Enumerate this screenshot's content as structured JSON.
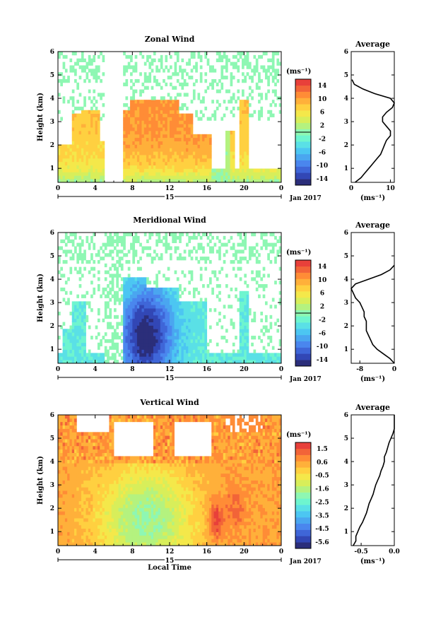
{
  "chart_data": [
    {
      "type": "heatmap",
      "title": "Zonal Wind",
      "ylabel": "Height (km)",
      "xticks": [
        "0",
        "4",
        "8",
        "12",
        "16",
        "20",
        "0"
      ],
      "xlim": [
        0,
        24
      ],
      "yticks": [
        "1",
        "2",
        "3",
        "4",
        "5",
        "6"
      ],
      "ylim": [
        0.4,
        6
      ],
      "date_center": "15",
      "date_label": "Jan 2017",
      "colorbar": {
        "unit": "(ms⁻¹)",
        "ticks": [
          "14",
          "10",
          "6",
          "2",
          "-2",
          "-6",
          "-10",
          "-14"
        ],
        "range": [
          -16,
          16
        ],
        "colors": [
          "#2b2e7a",
          "#3247b5",
          "#3f66d8",
          "#4a86ee",
          "#4aa6f0",
          "#4cc6f2",
          "#5ae0e6",
          "#6ef5cf",
          "#8ef7b3",
          "#b4f27f",
          "#d8ee5a",
          "#f4e84a",
          "#ffd040",
          "#ffb03a",
          "#ff8c36",
          "#f26438",
          "#e8403a"
        ]
      },
      "average_profile": {
        "title": "Average",
        "xlabel": "(ms⁻¹)",
        "xticks": [
          "0",
          "10"
        ],
        "xlim": [
          0,
          11
        ],
        "height": [
          0.4,
          0.6,
          0.8,
          1.0,
          1.2,
          1.4,
          1.6,
          1.8,
          2.0,
          2.2,
          2.4,
          2.6,
          2.8,
          3.0,
          3.2,
          3.4,
          3.6,
          3.8,
          4.0,
          4.2,
          4.4,
          4.6,
          4.8
        ],
        "value": [
          1.0,
          2.5,
          3.5,
          4.5,
          5.5,
          6.5,
          7.5,
          8.0,
          8.5,
          9.0,
          10.0,
          10.0,
          9.0,
          8.0,
          8.0,
          9.0,
          10.5,
          11.0,
          10.0,
          6.0,
          3.0,
          0.8,
          0.2
        ]
      }
    },
    {
      "type": "heatmap",
      "title": "Meridional Wind",
      "ylabel": "Height (km)",
      "xticks": [
        "0",
        "4",
        "8",
        "12",
        "16",
        "20",
        "0"
      ],
      "xlim": [
        0,
        24
      ],
      "yticks": [
        "1",
        "2",
        "3",
        "4",
        "5",
        "6"
      ],
      "ylim": [
        0.4,
        6
      ],
      "date_center": "15",
      "date_label": "Jan 2017",
      "colorbar": {
        "unit": "(ms⁻¹)",
        "ticks": [
          "14",
          "10",
          "6",
          "2",
          "-2",
          "-6",
          "-10",
          "-14"
        ],
        "range": [
          -16,
          16
        ],
        "colors": [
          "#2b2e7a",
          "#3247b5",
          "#3f66d8",
          "#4a86ee",
          "#4aa6f0",
          "#4cc6f2",
          "#5ae0e6",
          "#6ef5cf",
          "#8ef7b3",
          "#b4f27f",
          "#d8ee5a",
          "#f4e84a",
          "#ffd040",
          "#ffb03a",
          "#ff8c36",
          "#f26438",
          "#e8403a"
        ]
      },
      "average_profile": {
        "title": "Average",
        "xlabel": "(ms⁻¹)",
        "xticks": [
          "-8",
          "0"
        ],
        "xlim": [
          -10,
          0
        ],
        "height": [
          0.4,
          0.6,
          0.8,
          1.0,
          1.2,
          1.4,
          1.6,
          1.8,
          2.0,
          2.2,
          2.4,
          2.6,
          2.8,
          3.0,
          3.2,
          3.4,
          3.6,
          3.8,
          4.0,
          4.2,
          4.4,
          4.6
        ],
        "value": [
          0.0,
          -1.0,
          -2.5,
          -4.0,
          -5.0,
          -5.5,
          -6.0,
          -6.5,
          -6.5,
          -6.5,
          -7.0,
          -7.0,
          -7.5,
          -8.0,
          -9.0,
          -9.5,
          -10.0,
          -9.0,
          -6.0,
          -3.0,
          -1.0,
          0.0
        ]
      }
    },
    {
      "type": "heatmap",
      "title": "Vertical Wind",
      "ylabel": "Height (km)",
      "xlabel": "Local Time",
      "xticks": [
        "0",
        "4",
        "8",
        "12",
        "16",
        "20",
        "0"
      ],
      "xlim": [
        0,
        24
      ],
      "yticks": [
        "1",
        "2",
        "3",
        "4",
        "5",
        "6"
      ],
      "ylim": [
        0.4,
        6
      ],
      "date_center": "15",
      "date_label": "Jan 2017",
      "colorbar": {
        "unit": "(ms⁻¹)",
        "ticks": [
          "1.5",
          "0.6",
          "-0.5",
          "-1.6",
          "-2.5",
          "-3.5",
          "-4.5",
          "-5.6"
        ],
        "range": [
          -6,
          2
        ],
        "colors": [
          "#2b2e7a",
          "#3247b5",
          "#3f66d8",
          "#4a86ee",
          "#4aa6f0",
          "#4cc6f2",
          "#5ae0e6",
          "#6ef5cf",
          "#8ef7b3",
          "#b4f27f",
          "#d8ee5a",
          "#f4e84a",
          "#ffd040",
          "#ffb03a",
          "#ff8c36",
          "#f26438",
          "#e8403a"
        ]
      },
      "average_profile": {
        "title": "Average",
        "xlabel": "(ms⁻¹)",
        "xticks": [
          "-0.5",
          "0.0"
        ],
        "xlim": [
          -0.65,
          0.0
        ],
        "height": [
          0.4,
          0.6,
          0.8,
          1.0,
          1.2,
          1.4,
          1.6,
          1.8,
          2.0,
          2.2,
          2.4,
          2.6,
          2.8,
          3.0,
          3.2,
          3.4,
          3.6,
          3.8,
          4.0,
          4.2,
          4.4,
          4.6,
          4.8,
          5.0,
          5.2,
          5.4,
          5.6,
          5.8,
          6.0
        ],
        "value": [
          -0.62,
          -0.58,
          -0.58,
          -0.55,
          -0.52,
          -0.48,
          -0.45,
          -0.42,
          -0.4,
          -0.38,
          -0.35,
          -0.32,
          -0.3,
          -0.28,
          -0.25,
          -0.22,
          -0.2,
          -0.17,
          -0.15,
          -0.15,
          -0.12,
          -0.1,
          -0.08,
          -0.05,
          -0.02,
          0.0,
          0.0,
          0.0,
          0.0
        ]
      }
    }
  ]
}
